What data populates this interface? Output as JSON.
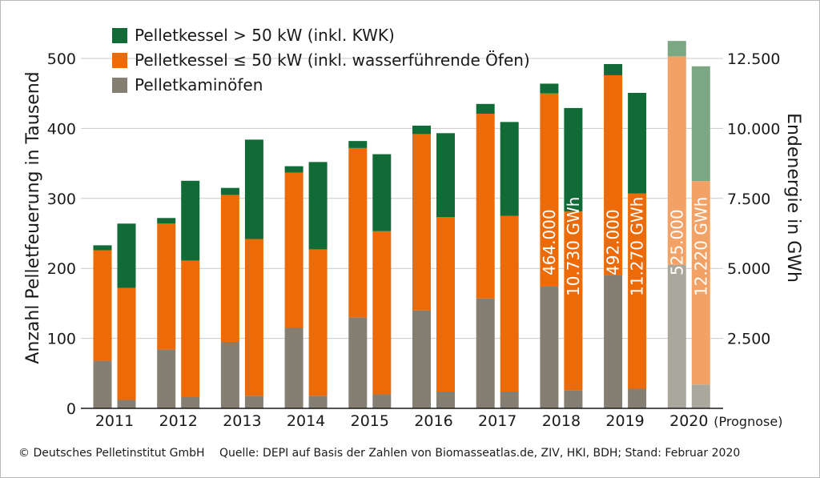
{
  "chart_data": {
    "type": "bar",
    "categories": [
      "2011",
      "2012",
      "2013",
      "2014",
      "2015",
      "2016",
      "2017",
      "2018",
      "2019",
      "2020"
    ],
    "category_suffix": "(Prognose)",
    "ylabel": "Anzahl Pelletfeuerung in Tausend",
    "ylabel_right": "Endenergie in GWh",
    "ylim": [
      0,
      500
    ],
    "ylim_right": [
      0,
      12500
    ],
    "yticks": [
      0,
      100,
      200,
      300,
      400,
      500
    ],
    "yticks_right_labels": [
      "2.500",
      "5.000",
      "7.500",
      "10.000",
      "12.500"
    ],
    "yticks_right_values": [
      2500,
      5000,
      7500,
      10000,
      12500
    ],
    "grid": true,
    "legend_position": "top-left",
    "colors": {
      "green": "#116b36",
      "orange": "#ec6b08",
      "gray": "#857e72",
      "green_forecast": "#7ba783",
      "orange_forecast": "#f2a266",
      "gray_forecast": "#aaa89c"
    },
    "series": [
      {
        "name": "Pelletkessel > 50 kW (inkl. KWK)",
        "axis": "left",
        "values": [
          7,
          8,
          10,
          9,
          10,
          12,
          14,
          14,
          16,
          22
        ]
      },
      {
        "name": "Pelletkessel  ≤ 50 kW (inkl. wasserführende Öfen)",
        "axis": "left",
        "values": [
          158,
          180,
          210,
          222,
          242,
          252,
          264,
          276,
          286,
          298
        ]
      },
      {
        "name": "Pelletkaminöfen",
        "axis": "left",
        "values": [
          68,
          84,
          95,
          115,
          130,
          140,
          157,
          174,
          190,
          205
        ]
      }
    ],
    "energy_series": {
      "axis": "right",
      "segments": [
        "gray",
        "orange",
        "green"
      ],
      "values": [
        [
          300,
          4000,
          2300
        ],
        [
          400,
          4880,
          2850
        ],
        [
          450,
          5600,
          3550
        ],
        [
          450,
          5230,
          3120
        ],
        [
          500,
          5830,
          2750
        ],
        [
          600,
          6230,
          3000
        ],
        [
          600,
          6280,
          3350
        ],
        [
          650,
          6380,
          3700
        ],
        [
          700,
          6980,
          3590
        ],
        [
          850,
          7270,
          4100
        ]
      ]
    },
    "annotations": [
      {
        "year": "2018",
        "count_label": "464.000",
        "energy_label": "10.730 GWh"
      },
      {
        "year": "2019",
        "count_label": "492.000",
        "energy_label": "11.270 GWh"
      },
      {
        "year": "2020",
        "count_label": "525.000",
        "energy_label": "12.220 GWh"
      }
    ]
  },
  "footer": {
    "copyright": "© Deutsches Pelletinstitut GmbH",
    "source": "Quelle: DEPI auf Basis der Zahlen von Biomasseatlas.de, ZIV, HKI, BDH; Stand: Februar 2020"
  }
}
